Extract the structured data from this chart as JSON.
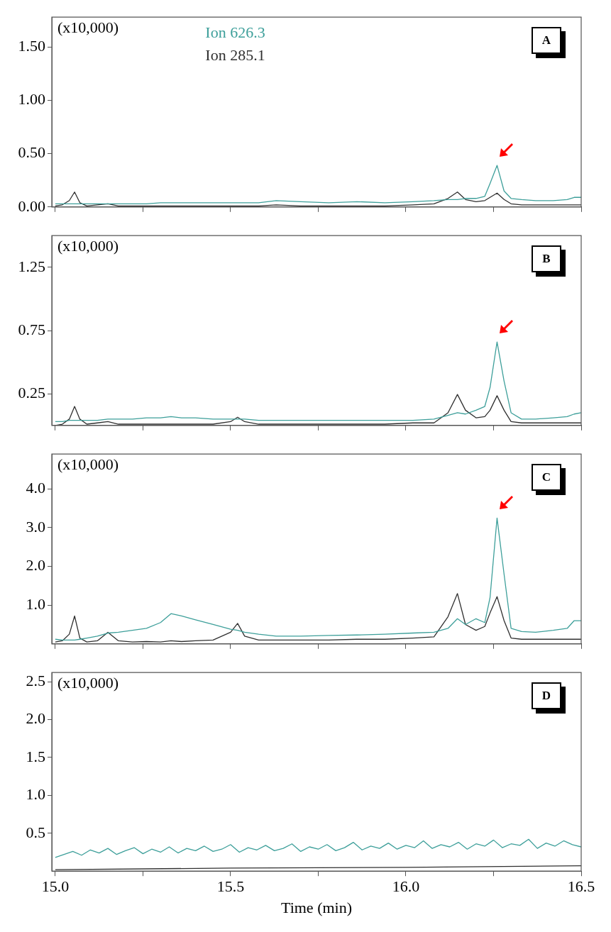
{
  "chart_data": [
    {
      "type": "line",
      "annotations": [
        "(x10,000)",
        "A"
      ],
      "legend": "top",
      "tick_labels": "y",
      "grid": false,
      "xlim": [
        14.99,
        16.5
      ],
      "xticks": [
        {
          "value": 15,
          "label": null
        },
        {
          "value": 15.25,
          "label": null
        },
        {
          "value": 15.5,
          "label": null
        },
        {
          "value": 15.75,
          "label": null
        },
        {
          "value": 16,
          "label": null
        },
        {
          "value": 16.25,
          "label": null
        },
        {
          "value": 16.5,
          "label": null
        }
      ],
      "ylim": [
        0,
        1.78
      ],
      "yticks": [
        {
          "value": 0,
          "label": "0.00"
        },
        {
          "value": 0.5,
          "label": "0.50"
        },
        {
          "value": 1,
          "label": "1.00"
        },
        {
          "value": 1.5,
          "label": "1.50"
        }
      ],
      "x": [
        15.0,
        15.02,
        15.04,
        15.055,
        15.07,
        15.09,
        15.12,
        15.15,
        15.18,
        15.22,
        15.26,
        15.3,
        15.33,
        15.36,
        15.4,
        15.45,
        15.5,
        15.52,
        15.54,
        15.58,
        15.63,
        15.7,
        15.78,
        15.86,
        15.94,
        16.02,
        16.08,
        16.12,
        16.147,
        16.17,
        16.2,
        16.225,
        16.24,
        16.26,
        16.28,
        16.3,
        16.33,
        16.37,
        16.42,
        16.46,
        16.48,
        16.5
      ],
      "series": [
        {
          "name": "Ion 626.3",
          "color": "#3d9f9a",
          "values": [
            0.03,
            0.03,
            0.03,
            0.03,
            0.03,
            0.03,
            0.03,
            0.03,
            0.03,
            0.03,
            0.03,
            0.04,
            0.04,
            0.04,
            0.04,
            0.04,
            0.04,
            0.04,
            0.04,
            0.04,
            0.06,
            0.05,
            0.04,
            0.05,
            0.04,
            0.05,
            0.06,
            0.07,
            0.07,
            0.08,
            0.08,
            0.1,
            0.22,
            0.39,
            0.15,
            0.08,
            0.07,
            0.06,
            0.06,
            0.07,
            0.09,
            0.09
          ]
        },
        {
          "name": "Ion 285.1",
          "color": "#303030",
          "values": [
            0.01,
            0.02,
            0.06,
            0.14,
            0.04,
            0.01,
            0.02,
            0.03,
            0.01,
            0.01,
            0.01,
            0.01,
            0.01,
            0.01,
            0.01,
            0.01,
            0.01,
            0.01,
            0.01,
            0.01,
            0.02,
            0.01,
            0.01,
            0.01,
            0.01,
            0.02,
            0.03,
            0.08,
            0.14,
            0.07,
            0.05,
            0.06,
            0.09,
            0.13,
            0.07,
            0.03,
            0.02,
            0.02,
            0.02,
            0.02,
            0.02,
            0.02
          ]
        }
      ]
    },
    {
      "type": "line",
      "annotations": [
        "(x10,000)",
        "B"
      ],
      "tick_labels": "y",
      "grid": false,
      "xlim": [
        14.99,
        16.5
      ],
      "xticks": [
        {
          "value": 15,
          "label": null
        },
        {
          "value": 15.25,
          "label": null
        },
        {
          "value": 15.5,
          "label": null
        },
        {
          "value": 15.75,
          "label": null
        },
        {
          "value": 16,
          "label": null
        },
        {
          "value": 16.25,
          "label": null
        },
        {
          "value": 16.5,
          "label": null
        }
      ],
      "ylim": [
        0,
        1.5
      ],
      "yticks": [
        0.25,
        0.75,
        1.25
      ],
      "x": [
        15.0,
        15.02,
        15.04,
        15.055,
        15.07,
        15.09,
        15.12,
        15.15,
        15.18,
        15.22,
        15.26,
        15.3,
        15.33,
        15.36,
        15.4,
        15.45,
        15.5,
        15.52,
        15.54,
        15.58,
        15.63,
        15.7,
        15.78,
        15.86,
        15.94,
        16.02,
        16.08,
        16.12,
        16.147,
        16.17,
        16.2,
        16.225,
        16.24,
        16.26,
        16.28,
        16.3,
        16.33,
        16.37,
        16.42,
        16.46,
        16.48,
        16.5
      ],
      "series": [
        {
          "color": "#3d9f9a",
          "values": [
            0.03,
            0.03,
            0.04,
            0.04,
            0.04,
            0.04,
            0.04,
            0.05,
            0.05,
            0.05,
            0.06,
            0.06,
            0.07,
            0.06,
            0.06,
            0.05,
            0.05,
            0.05,
            0.05,
            0.04,
            0.04,
            0.04,
            0.04,
            0.04,
            0.04,
            0.04,
            0.05,
            0.08,
            0.1,
            0.09,
            0.12,
            0.15,
            0.3,
            0.66,
            0.35,
            0.1,
            0.05,
            0.05,
            0.06,
            0.07,
            0.09,
            0.1
          ]
        },
        {
          "color": "#303030",
          "values": [
            0.0,
            0.01,
            0.05,
            0.15,
            0.05,
            0.01,
            0.02,
            0.03,
            0.01,
            0.01,
            0.01,
            0.01,
            0.01,
            0.01,
            0.01,
            0.01,
            0.03,
            0.065,
            0.03,
            0.01,
            0.01,
            0.01,
            0.01,
            0.01,
            0.01,
            0.02,
            0.02,
            0.1,
            0.245,
            0.12,
            0.06,
            0.07,
            0.12,
            0.235,
            0.12,
            0.03,
            0.02,
            0.02,
            0.02,
            0.02,
            0.02,
            0.02
          ]
        }
      ]
    },
    {
      "type": "line",
      "annotations": [
        "(x10,000)",
        "C"
      ],
      "tick_labels": "y",
      "grid": false,
      "xlim": [
        14.99,
        16.5
      ],
      "xticks": [
        {
          "value": 15,
          "label": null
        },
        {
          "value": 15.25,
          "label": null
        },
        {
          "value": 15.5,
          "label": null
        },
        {
          "value": 15.75,
          "label": null
        },
        {
          "value": 16,
          "label": null
        },
        {
          "value": 16.25,
          "label": null
        },
        {
          "value": 16.5,
          "label": null
        }
      ],
      "ylim": [
        0,
        4.9
      ],
      "yticks": [
        {
          "value": 1,
          "label": "1.0"
        },
        {
          "value": 2,
          "label": "2.0"
        },
        {
          "value": 3,
          "label": "3.0"
        },
        {
          "value": 4,
          "label": "4.0"
        }
      ],
      "x": [
        15.0,
        15.02,
        15.04,
        15.055,
        15.07,
        15.09,
        15.12,
        15.15,
        15.18,
        15.22,
        15.26,
        15.3,
        15.33,
        15.36,
        15.4,
        15.45,
        15.5,
        15.52,
        15.54,
        15.58,
        15.63,
        15.7,
        15.78,
        15.86,
        15.94,
        16.02,
        16.08,
        16.12,
        16.147,
        16.17,
        16.2,
        16.225,
        16.24,
        16.26,
        16.28,
        16.3,
        16.33,
        16.37,
        16.42,
        16.46,
        16.48,
        16.5
      ],
      "series": [
        {
          "color": "#3d9f9a",
          "values": [
            0.12,
            0.1,
            0.1,
            0.1,
            0.12,
            0.15,
            0.2,
            0.28,
            0.3,
            0.35,
            0.4,
            0.55,
            0.78,
            0.72,
            0.62,
            0.5,
            0.38,
            0.35,
            0.3,
            0.25,
            0.2,
            0.2,
            0.22,
            0.23,
            0.25,
            0.28,
            0.3,
            0.4,
            0.65,
            0.5,
            0.65,
            0.55,
            1.2,
            3.25,
            1.8,
            0.4,
            0.32,
            0.3,
            0.35,
            0.4,
            0.6,
            0.6
          ]
        },
        {
          "color": "#303030",
          "values": [
            0.05,
            0.08,
            0.25,
            0.72,
            0.15,
            0.05,
            0.08,
            0.3,
            0.08,
            0.05,
            0.06,
            0.05,
            0.08,
            0.06,
            0.08,
            0.1,
            0.3,
            0.53,
            0.2,
            0.1,
            0.1,
            0.1,
            0.1,
            0.12,
            0.12,
            0.15,
            0.18,
            0.7,
            1.3,
            0.5,
            0.35,
            0.45,
            0.8,
            1.22,
            0.6,
            0.15,
            0.12,
            0.12,
            0.12,
            0.12,
            0.12,
            0.12
          ]
        }
      ]
    },
    {
      "type": "line",
      "annotations": [
        "(x10,000)",
        "D"
      ],
      "xlabel": "Time (min)",
      "grid": false,
      "xlim": [
        14.99,
        16.5
      ],
      "xticks": [
        {
          "value": 15,
          "label": "15.0"
        },
        {
          "value": 15.25,
          "label": null
        },
        15.5,
        {
          "value": 15.75,
          "label": null
        },
        {
          "value": 16,
          "label": "16.0"
        },
        {
          "value": 16.25,
          "label": null
        },
        16.5
      ],
      "ylim": [
        0,
        2.62
      ],
      "yticks": [
        0.5,
        {
          "value": 1,
          "label": "1.0"
        },
        1.5,
        {
          "value": 2,
          "label": "2.0"
        },
        2.5
      ],
      "series": [
        {
          "color": "#3d9f9a",
          "x": [
            15.0,
            15.025,
            15.05,
            15.075,
            15.1,
            15.125,
            15.15,
            15.175,
            15.2,
            15.225,
            15.25,
            15.275,
            15.3,
            15.325,
            15.35,
            15.375,
            15.4,
            15.425,
            15.45,
            15.475,
            15.5,
            15.525,
            15.55,
            15.575,
            15.6,
            15.625,
            15.65,
            15.675,
            15.7,
            15.725,
            15.75,
            15.775,
            15.8,
            15.825,
            15.85,
            15.875,
            15.9,
            15.925,
            15.95,
            15.975,
            16.0,
            16.025,
            16.05,
            16.075,
            16.1,
            16.125,
            16.15,
            16.175,
            16.2,
            16.225,
            16.25,
            16.275,
            16.3,
            16.325,
            16.35,
            16.375,
            16.4,
            16.425,
            16.45,
            16.475,
            16.5
          ],
          "values": [
            0.18,
            0.22,
            0.26,
            0.21,
            0.28,
            0.24,
            0.3,
            0.22,
            0.27,
            0.31,
            0.23,
            0.29,
            0.25,
            0.32,
            0.24,
            0.3,
            0.27,
            0.33,
            0.26,
            0.29,
            0.35,
            0.25,
            0.31,
            0.28,
            0.34,
            0.27,
            0.3,
            0.36,
            0.26,
            0.32,
            0.29,
            0.35,
            0.27,
            0.31,
            0.38,
            0.28,
            0.33,
            0.3,
            0.37,
            0.29,
            0.34,
            0.31,
            0.4,
            0.3,
            0.35,
            0.32,
            0.38,
            0.29,
            0.36,
            0.33,
            0.41,
            0.31,
            0.36,
            0.34,
            0.42,
            0.3,
            0.37,
            0.33,
            0.4,
            0.35,
            0.32
          ]
        },
        {
          "color": "#303030",
          "x": [
            15.0,
            15.5,
            16.0,
            16.5
          ],
          "values": [
            0.02,
            0.04,
            0.05,
            0.07
          ]
        }
      ]
    }
  ]
}
